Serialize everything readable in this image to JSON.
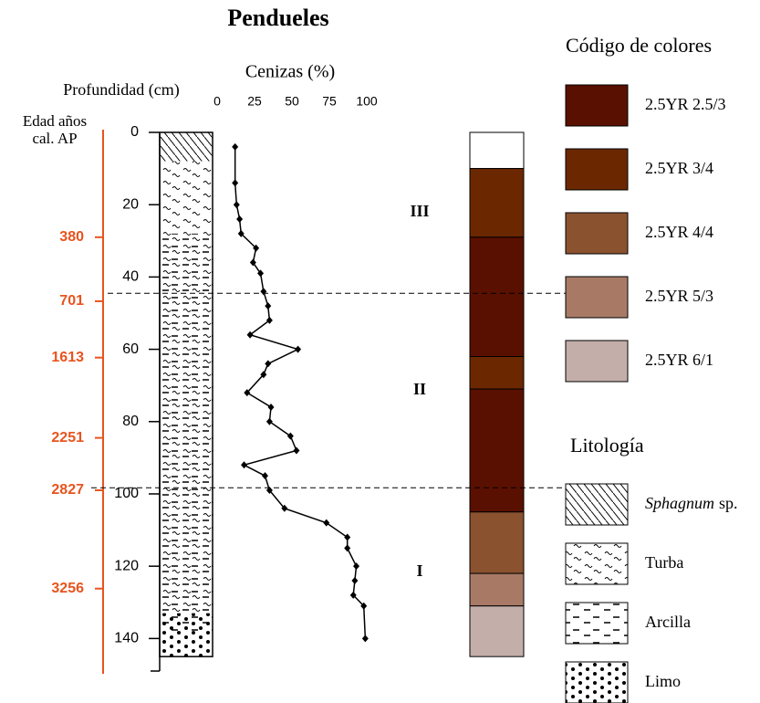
{
  "chart_data": {
    "type": "stratigraphic",
    "title": "Pendueles",
    "depth_axis": {
      "label": "Profundidad (cm)",
      "ylim": [
        0,
        149
      ],
      "yticks": [
        0,
        20,
        40,
        60,
        80,
        100,
        120,
        140
      ]
    },
    "ash": {
      "label": "Cenizas (%)",
      "xlim": [
        0,
        100
      ],
      "xticks": [
        0,
        25,
        50,
        75,
        100
      ],
      "color": "#000000",
      "depth": [
        4,
        14,
        20,
        24,
        28,
        32,
        36,
        39,
        44,
        48,
        52,
        56,
        60,
        64,
        67,
        72,
        76,
        80,
        84,
        88,
        92,
        95,
        99,
        104,
        108,
        112,
        115,
        120,
        124,
        128,
        131,
        140
      ],
      "values": [
        12,
        12,
        13,
        15,
        16,
        26,
        24,
        29,
        31,
        34,
        35,
        22,
        54,
        34,
        31,
        20,
        36,
        35,
        49,
        53,
        18,
        32,
        35,
        45,
        73,
        87,
        87,
        93,
        92,
        91,
        98,
        99
      ]
    },
    "age_axis": {
      "label": [
        "Edad años",
        "cal. AP"
      ],
      "color": "#e8541e",
      "ages": [
        380,
        701,
        1613,
        2251,
        2827,
        3256
      ],
      "depths": [
        29,
        46.7,
        62.3,
        84.5,
        99,
        126.2
      ]
    },
    "zones": {
      "labels": [
        "III",
        "II",
        "I"
      ],
      "boundaries": [
        44.5,
        98.3
      ]
    },
    "color_column": [
      {
        "top": 0,
        "bottom": 10,
        "color": "#ffffff"
      },
      {
        "top": 10,
        "bottom": 29,
        "color": "#6b2800"
      },
      {
        "top": 29,
        "bottom": 62,
        "color": "#5a1000"
      },
      {
        "top": 62,
        "bottom": 71,
        "color": "#6b2800"
      },
      {
        "top": 71,
        "bottom": 105,
        "color": "#5a1000"
      },
      {
        "top": 105,
        "bottom": 122,
        "color": "#8b5230"
      },
      {
        "top": 122,
        "bottom": 131,
        "color": "#a87a66"
      },
      {
        "top": 131,
        "bottom": 145,
        "color": "#c4aeaa"
      }
    ],
    "color_legend": {
      "title": "Código de colores",
      "items": [
        {
          "label": "2.5YR 2.5/3",
          "color": "#5a1000"
        },
        {
          "label": "2.5YR 3/4",
          "color": "#6b2800"
        },
        {
          "label": "2.5YR 4/4",
          "color": "#8b5230"
        },
        {
          "label": "2.5YR 5/3",
          "color": "#a87a66"
        },
        {
          "label": "2.5YR 6/1",
          "color": "#c4aeaa"
        }
      ]
    },
    "lithology": [
      {
        "top": 0,
        "bottom": 8,
        "lith": [
          0
        ]
      },
      {
        "top": 8,
        "bottom": 28,
        "lith": [
          1
        ]
      },
      {
        "top": 28,
        "bottom": 133,
        "lith": [
          1,
          2
        ]
      },
      {
        "top": 133,
        "bottom": 138,
        "lith": [
          2,
          3
        ]
      },
      {
        "top": 138,
        "bottom": 145,
        "lith": [
          3
        ]
      }
    ],
    "lith_legend": {
      "title": "Litología",
      "items": [
        {
          "label": "Sphagnum",
          "suffix": "sp."
        },
        {
          "label": "Turba"
        },
        {
          "label": "Arcilla"
        },
        {
          "label": "Limo"
        }
      ]
    }
  }
}
